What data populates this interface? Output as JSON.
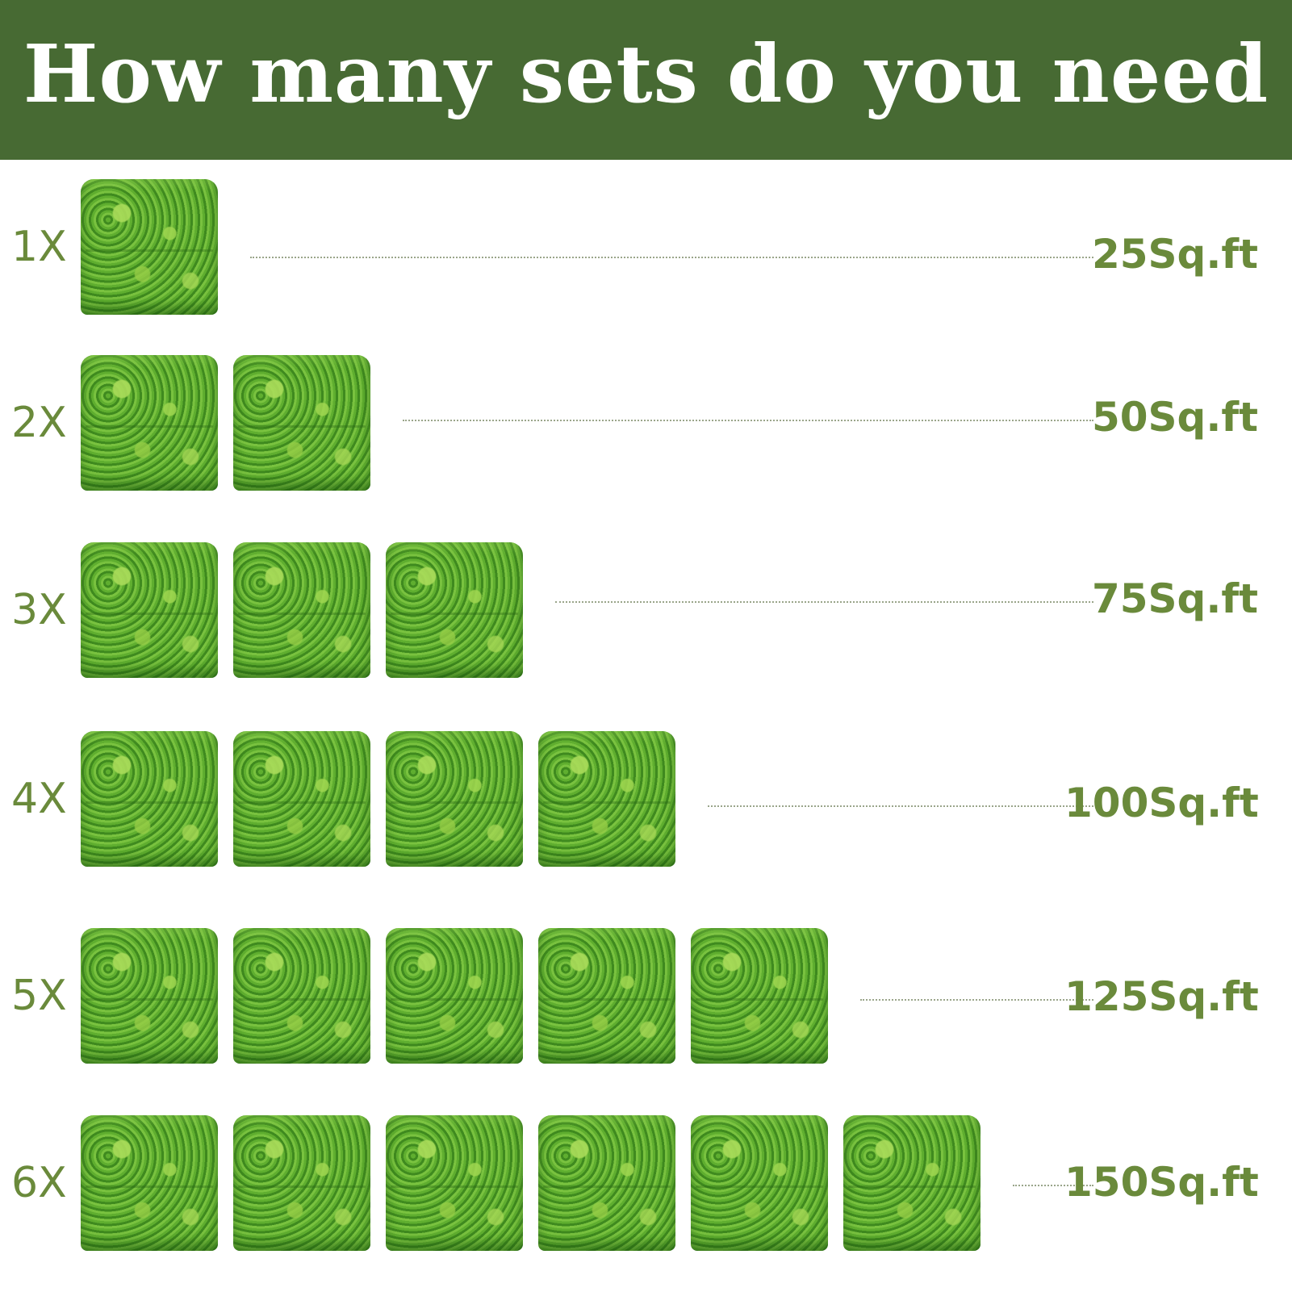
{
  "title": "How many sets do you need",
  "colors": {
    "header_bg": "#476a33",
    "text_green": "#6a8a3b",
    "panel_green": "#4f9a2a"
  },
  "rows": [
    {
      "multiplier": "1X",
      "area": "25Sq.ft",
      "panel_count": 1
    },
    {
      "multiplier": "2X",
      "area": "50Sq.ft",
      "panel_count": 2
    },
    {
      "multiplier": "3X",
      "area": "75Sq.ft",
      "panel_count": 3
    },
    {
      "multiplier": "4X",
      "area": "100Sq.ft",
      "panel_count": 4
    },
    {
      "multiplier": "5X",
      "area": "125Sq.ft",
      "panel_count": 5
    },
    {
      "multiplier": "6X",
      "area": "150Sq.ft",
      "panel_count": 6
    }
  ]
}
